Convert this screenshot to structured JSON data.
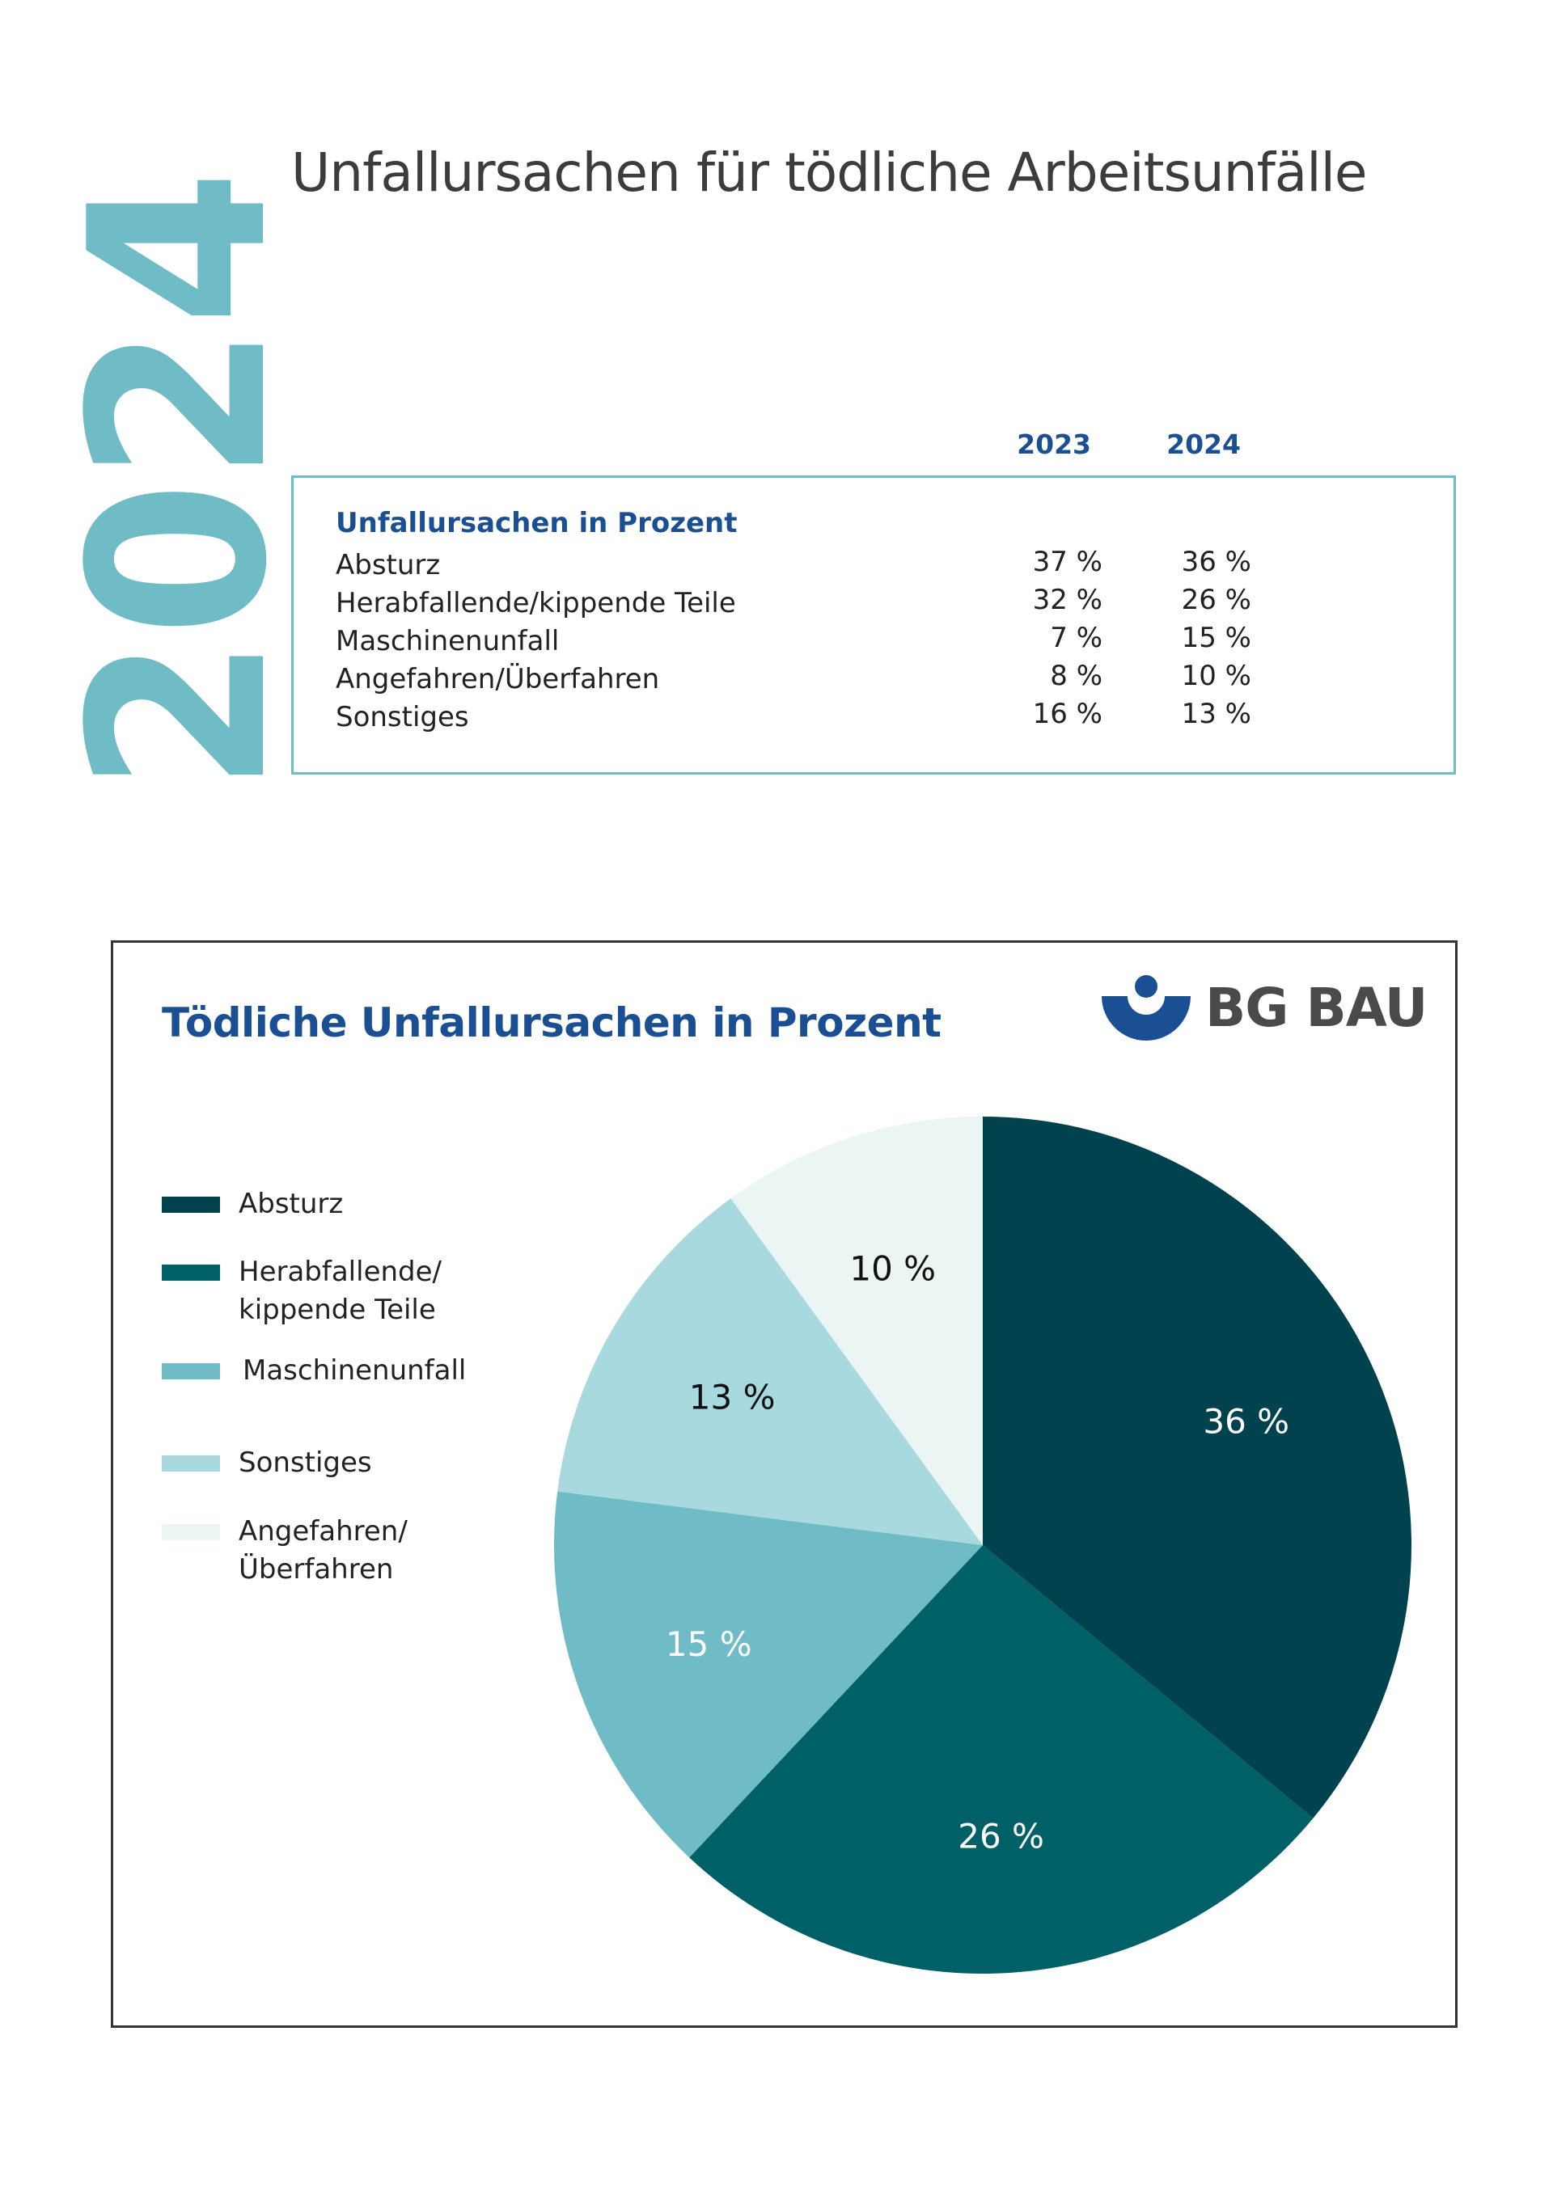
{
  "header": {
    "year_large": "2024",
    "title": "Unfallursachen für tödliche Arbeitsunfälle"
  },
  "table": {
    "columns": [
      "2023",
      "2024"
    ],
    "heading": "Unfallursachen in Prozent",
    "rows": [
      {
        "label": "Absturz",
        "v2023": "37 %",
        "v2024": "36 %"
      },
      {
        "label": "Herabfallende/kippende Teile",
        "v2023": "32 %",
        "v2024": "26 %"
      },
      {
        "label": "Maschinenunfall",
        "v2023": "7 %",
        "v2024": "15 %"
      },
      {
        "label": "Angefahren/Überfahren",
        "v2023": "8 %",
        "v2024": "10 %"
      },
      {
        "label": "Sonstiges",
        "v2023": "16 %",
        "v2024": "13 %"
      }
    ]
  },
  "chart": {
    "title": "Tödliche Unfallursachen in Prozent",
    "logo_text": "BG BAU",
    "legend": [
      {
        "label": "Absturz",
        "color": "#00424d"
      },
      {
        "label": "Herabfallende/\nkippende Teile",
        "color": "#006068"
      },
      {
        "label": "Maschinenunfall",
        "color": "#6fbcc6"
      },
      {
        "label": "Sonstiges",
        "color": "#a7d9de"
      },
      {
        "label": "Angefahren/\nÜberfahren",
        "color": "#eaf5f4"
      }
    ]
  },
  "chart_data": {
    "type": "pie",
    "title": "Tödliche Unfallursachen in Prozent",
    "start": "12 o'clock",
    "direction": "clockwise",
    "slices": [
      {
        "label": "Absturz",
        "value": 36,
        "display": "36 %",
        "color": "#00424d",
        "label_color": "#ffffff"
      },
      {
        "label": "Herabfallende/kippende Teile",
        "value": 26,
        "display": "26 %",
        "color": "#006068",
        "label_color": "#ffffff"
      },
      {
        "label": "Maschinenunfall",
        "value": 15,
        "display": "15 %",
        "color": "#6fbcc6",
        "label_color": "#ffffff"
      },
      {
        "label": "Sonstiges",
        "value": 13,
        "display": "13 %",
        "color": "#a7d9de",
        "label_color": "#111111"
      },
      {
        "label": "Angefahren/Überfahren",
        "value": 10,
        "display": "10 %",
        "color": "#eaf5f4",
        "label_color": "#111111"
      }
    ]
  }
}
